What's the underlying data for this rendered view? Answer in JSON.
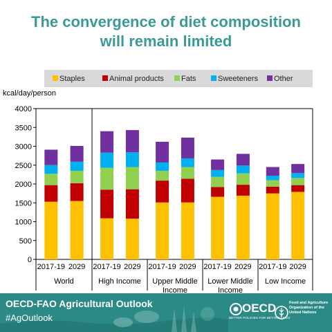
{
  "slide": {
    "title_line1": "The convergence of diet composition",
    "title_line2": "will remain limited"
  },
  "chart_data": {
    "type": "bar",
    "stacked": true,
    "title": "",
    "ylabel": "kcal/day/person",
    "xlabel": "",
    "ylim": [
      0,
      4000
    ],
    "yticks": [
      0,
      500,
      1000,
      1500,
      2000,
      2500,
      3000,
      3500,
      4000
    ],
    "grid": false,
    "legend_position": "top",
    "groups": [
      "World",
      "High Income",
      "Upper Middle Income",
      "Lower Middle Income",
      "Low Income"
    ],
    "categories": [
      "2017-19",
      "2029",
      "2017-19",
      "2029",
      "2017-19",
      "2029",
      "2017-19",
      "2029",
      "2017-19",
      "2029"
    ],
    "series": [
      {
        "name": "Staples",
        "color": "#ffc000",
        "values": [
          1530,
          1550,
          1090,
          1080,
          1510,
          1510,
          1660,
          1690,
          1750,
          1790
        ]
      },
      {
        "name": "Animal products",
        "color": "#c00000",
        "values": [
          440,
          470,
          760,
          780,
          580,
          630,
          260,
          290,
          180,
          180
        ]
      },
      {
        "name": "Fats",
        "color": "#92d050",
        "values": [
          300,
          330,
          580,
          590,
          260,
          310,
          270,
          300,
          170,
          190
        ]
      },
      {
        "name": "Sweeteners",
        "color": "#00b0f0",
        "values": [
          230,
          240,
          400,
          390,
          220,
          230,
          180,
          210,
          120,
          130
        ]
      },
      {
        "name": "Other",
        "color": "#7030a0",
        "values": [
          410,
          420,
          570,
          590,
          550,
          550,
          280,
          310,
          230,
          240
        ]
      }
    ]
  },
  "footer": {
    "title": "OECD-FAO Agricultural Outlook",
    "hashtag": "#AgOutlook",
    "oecd_name": "OECD",
    "oecd_tagline": "BETTER POLICIES FOR BETTER LIVES",
    "fao_name": "Food and Agriculture Organization of the United Nations"
  }
}
